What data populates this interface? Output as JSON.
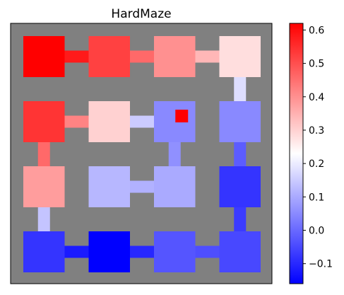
{
  "chart_data": {
    "type": "heatmap",
    "title": "HardMaze",
    "grid_cells": [
      4,
      4
    ],
    "cmap": "bwr",
    "vmin": -0.16,
    "vmax": 0.62,
    "wall_color": "#808080",
    "rooms": [
      {
        "row": 0,
        "col": 0,
        "value": 0.62
      },
      {
        "row": 0,
        "col": 1,
        "value": 0.52
      },
      {
        "row": 0,
        "col": 2,
        "value": 0.4
      },
      {
        "row": 0,
        "col": 3,
        "value": 0.28
      },
      {
        "row": 1,
        "col": 0,
        "value": 0.54
      },
      {
        "row": 1,
        "col": 1,
        "value": 0.3
      },
      {
        "row": 1,
        "col": 2,
        "value": 0.05
      },
      {
        "row": 1,
        "col": 3,
        "value": 0.05
      },
      {
        "row": 2,
        "col": 0,
        "value": 0.38
      },
      {
        "row": 2,
        "col": 1,
        "value": 0.12
      },
      {
        "row": 2,
        "col": 2,
        "value": 0.1
      },
      {
        "row": 2,
        "col": 3,
        "value": -0.08
      },
      {
        "row": 3,
        "col": 0,
        "value": -0.08
      },
      {
        "row": 3,
        "col": 1,
        "value": -0.16
      },
      {
        "row": 3,
        "col": 2,
        "value": -0.03
      },
      {
        "row": 3,
        "col": 3,
        "value": -0.05
      }
    ],
    "connections": [
      {
        "from": [
          0,
          0
        ],
        "to": [
          0,
          1
        ],
        "value": 0.58
      },
      {
        "from": [
          0,
          1
        ],
        "to": [
          0,
          2
        ],
        "value": 0.46
      },
      {
        "from": [
          0,
          2
        ],
        "to": [
          0,
          3
        ],
        "value": 0.34
      },
      {
        "from": [
          0,
          3
        ],
        "to": [
          1,
          3
        ],
        "value": 0.18
      },
      {
        "from": [
          1,
          0
        ],
        "to": [
          1,
          1
        ],
        "value": 0.42
      },
      {
        "from": [
          1,
          1
        ],
        "to": [
          1,
          2
        ],
        "value": 0.15
      },
      {
        "from": [
          1,
          2
        ],
        "to": [
          2,
          2
        ],
        "value": 0.06
      },
      {
        "from": [
          1,
          3
        ],
        "to": [
          2,
          3
        ],
        "value": -0.02
      },
      {
        "from": [
          1,
          0
        ],
        "to": [
          2,
          0
        ],
        "value": 0.46
      },
      {
        "from": [
          2,
          1
        ],
        "to": [
          2,
          2
        ],
        "value": 0.11
      },
      {
        "from": [
          2,
          0
        ],
        "to": [
          3,
          0
        ],
        "value": 0.14
      },
      {
        "from": [
          2,
          3
        ],
        "to": [
          3,
          3
        ],
        "value": -0.07
      },
      {
        "from": [
          3,
          0
        ],
        "to": [
          3,
          1
        ],
        "value": -0.12
      },
      {
        "from": [
          3,
          1
        ],
        "to": [
          3,
          2
        ],
        "value": -0.1
      },
      {
        "from": [
          3,
          2
        ],
        "to": [
          3,
          3
        ],
        "value": -0.04
      }
    ],
    "goal": {
      "row": 1,
      "col": 2,
      "color": "#ff0000"
    },
    "colorbar": {
      "ticks": [
        -0.1,
        0.0,
        0.1,
        0.2,
        0.3,
        0.4,
        0.5,
        0.6
      ],
      "tick_labels": [
        "−0.1",
        "0.0",
        "0.1",
        "0.2",
        "0.3",
        "0.4",
        "0.5",
        "0.6"
      ]
    }
  }
}
